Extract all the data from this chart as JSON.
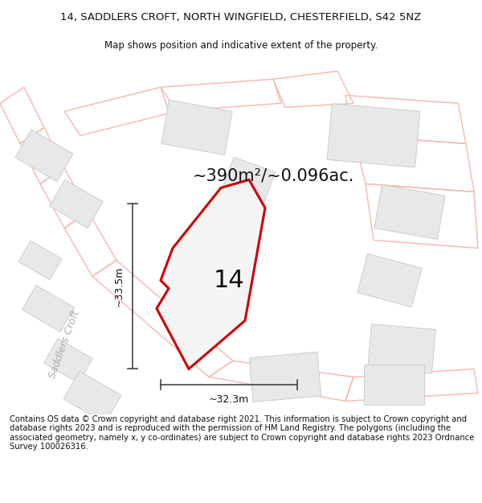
{
  "title_line1": "14, SADDLERS CROFT, NORTH WINGFIELD, CHESTERFIELD, S42 5NZ",
  "title_line2": "Map shows position and indicative extent of the property.",
  "area_text": "~390m²/~0.096ac.",
  "property_number": "14",
  "dim_width": "~32.3m",
  "dim_height": "~33.5m",
  "street_label": "Saddlers Croft",
  "footer_text": "Contains OS data © Crown copyright and database right 2021. This information is subject to Crown copyright and database rights 2023 and is reproduced with the permission of HM Land Registry. The polygons (including the associated geometry, namely x, y co-ordinates) are subject to Crown copyright and database rights 2023 Ordnance Survey 100026316.",
  "bg_color": "#ffffff",
  "map_bg": "#f9f8f6",
  "road_color": "#f5b8b0",
  "road_edge": "#e8a098",
  "building_fill": "#e8e8e8",
  "building_edge": "#c8c8c8",
  "main_poly_fill": "#f5f5f5",
  "main_poly_edge": "#cc0000",
  "dim_line_color": "#444444",
  "street_color": "#aaaaaa",
  "title_fontsize": 9.5,
  "subtitle_fontsize": 8.5,
  "area_fontsize": 15,
  "number_fontsize": 22,
  "footer_fontsize": 7.2,
  "street_fontsize": 9
}
